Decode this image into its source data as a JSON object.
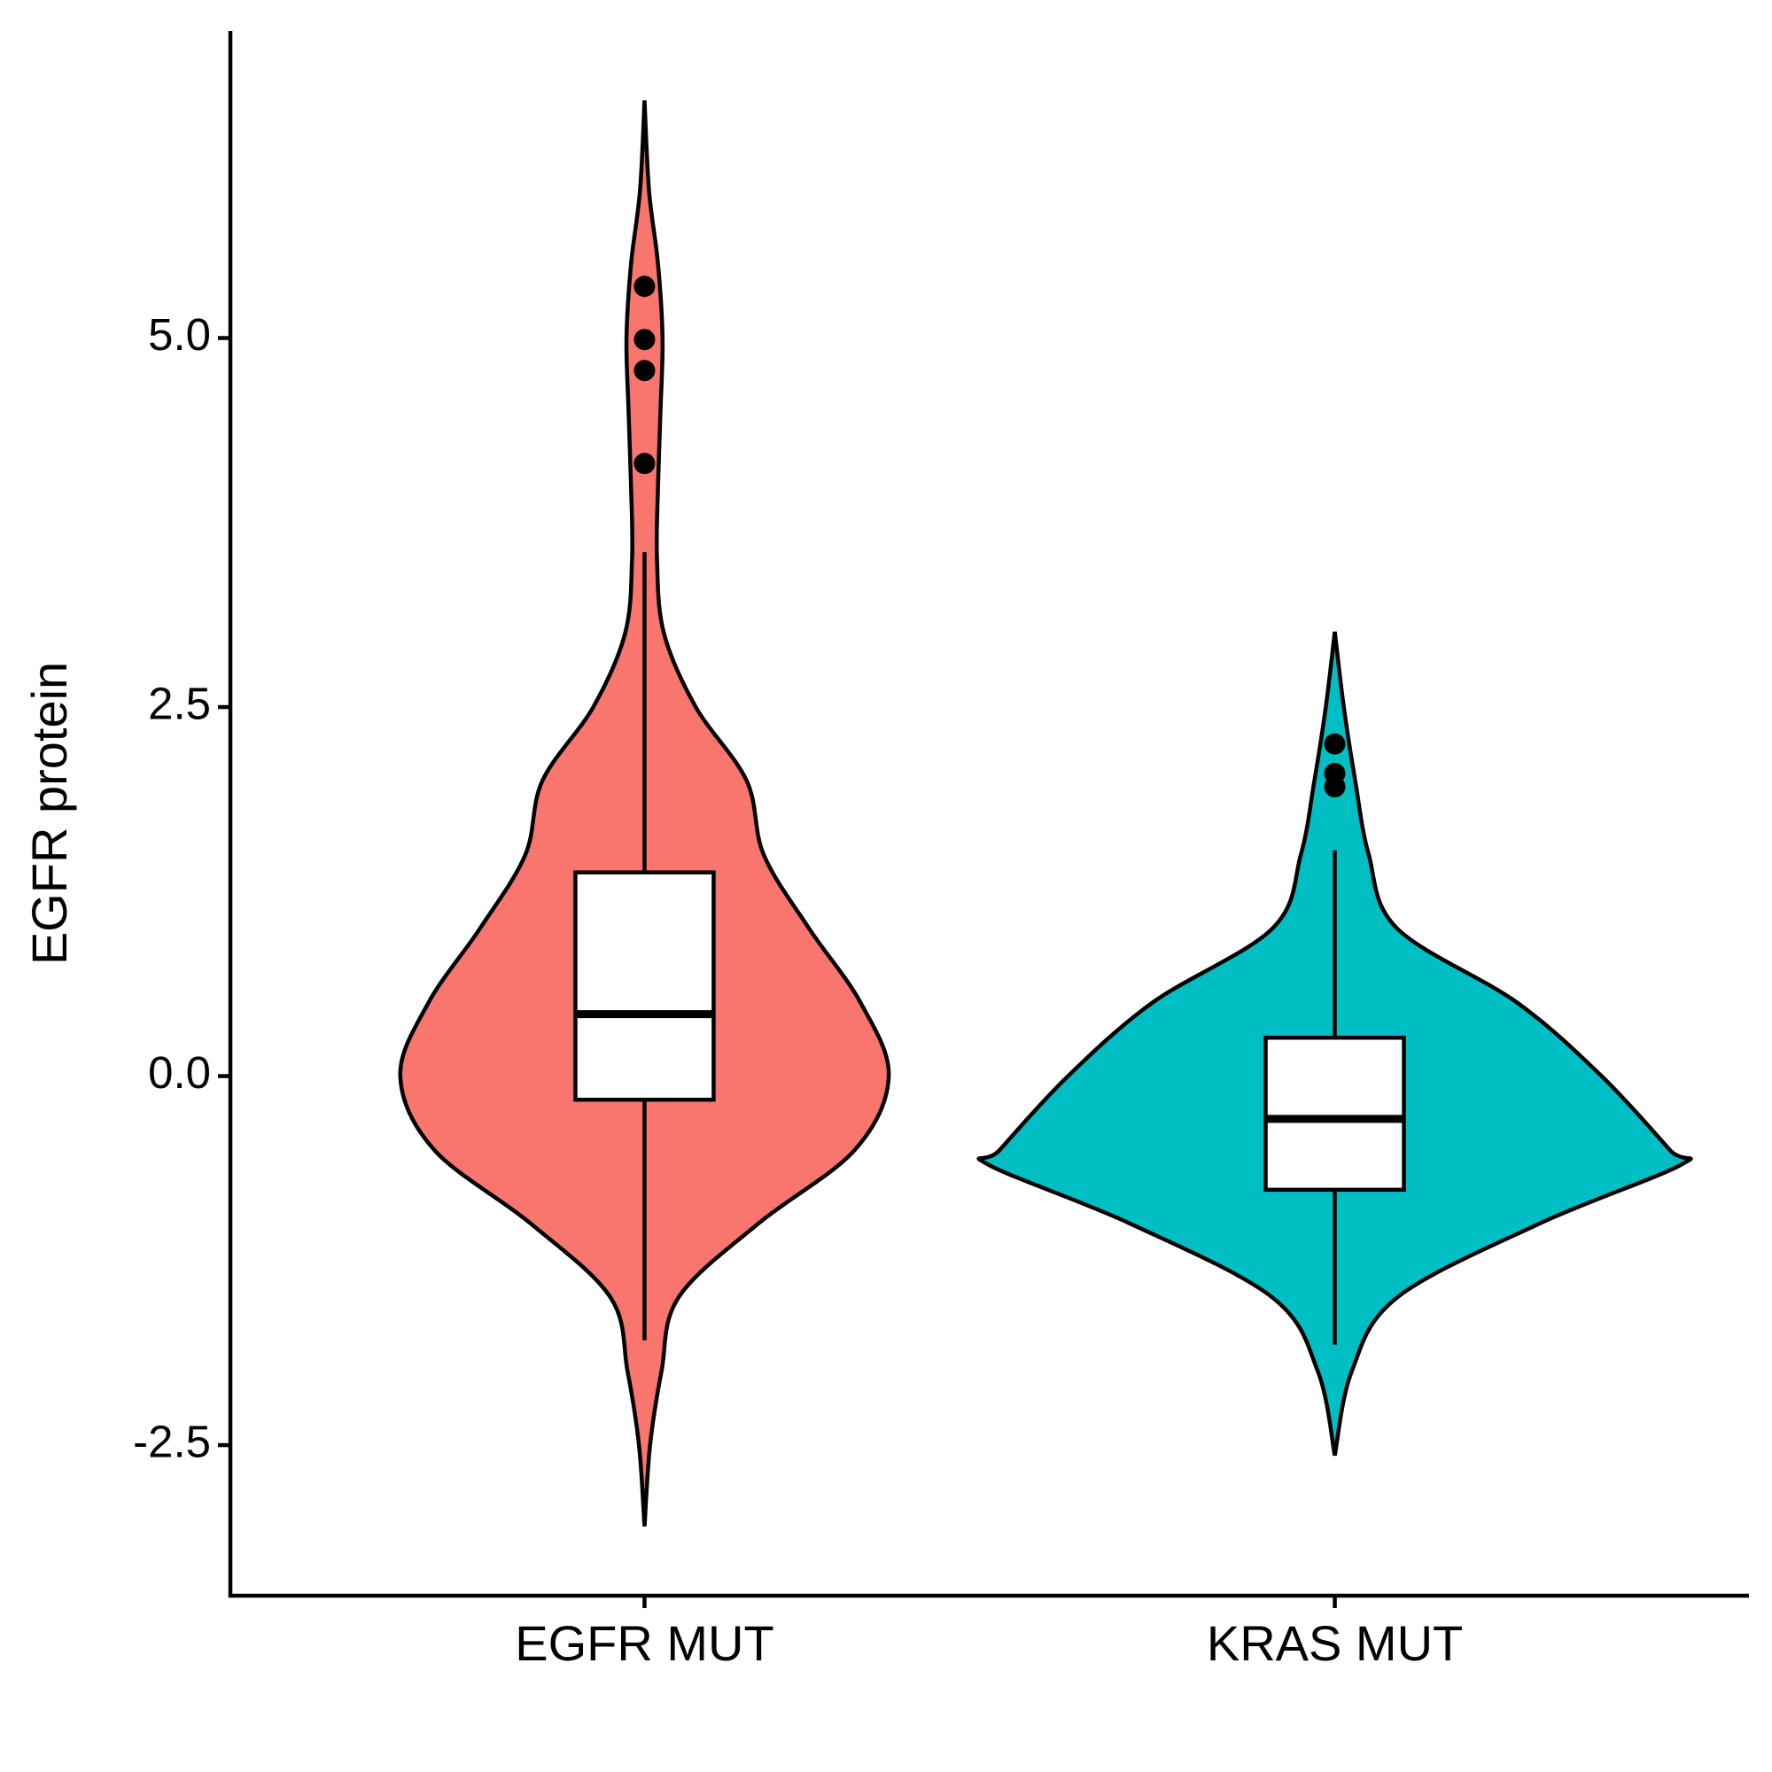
{
  "chart_data": {
    "type": "violin",
    "y_label": "EGFR protein",
    "ylim": [
      -3.52,
      7.08
    ],
    "yticks": [
      -2.5,
      {
        "value": 0,
        "label": "0.0"
      },
      2.5,
      {
        "value": 5,
        "label": "5.0"
      }
    ],
    "series": [
      {
        "name": "EGFR MUT",
        "color": "#f8766d",
        "whisker_low": -1.79,
        "q1": -0.16,
        "median": 0.42,
        "q3": 1.38,
        "whisker_high": 3.55,
        "outliers": [
          5.35,
          4.99,
          4.78,
          4.15
        ],
        "violin_y": [
          6.61,
          6.0,
          5.5,
          5.0,
          4.5,
          4.0,
          3.5,
          3.0,
          2.5,
          2.0,
          1.5,
          1.0,
          0.5,
          0.0,
          -0.5,
          -1.0,
          -1.5,
          -2.0,
          -2.5,
          -3.05
        ],
        "violin_density": [
          0,
          0.013,
          0.039,
          0.052,
          0.046,
          0.039,
          0.036,
          0.056,
          0.148,
          0.295,
          0.344,
          0.475,
          0.623,
          0.705,
          0.607,
          0.328,
          0.098,
          0.049,
          0.016,
          0
        ]
      },
      {
        "name": "KRAS MUT",
        "color": "#00bfc4",
        "whisker_low": -1.82,
        "q1": -0.77,
        "median": -0.29,
        "q3": 0.26,
        "whisker_high": 1.53,
        "outliers": [
          2.25,
          2.05,
          1.96
        ],
        "violin_y": [
          3.01,
          2.5,
          2.0,
          1.5,
          1.0,
          0.5,
          0.0,
          -0.5,
          -0.6,
          -1.0,
          -1.5,
          -2.0,
          -2.57
        ],
        "violin_density": [
          0,
          0.026,
          0.059,
          0.098,
          0.18,
          0.525,
          0.77,
          0.967,
          1.0,
          0.59,
          0.18,
          0.049,
          0
        ]
      }
    ]
  }
}
